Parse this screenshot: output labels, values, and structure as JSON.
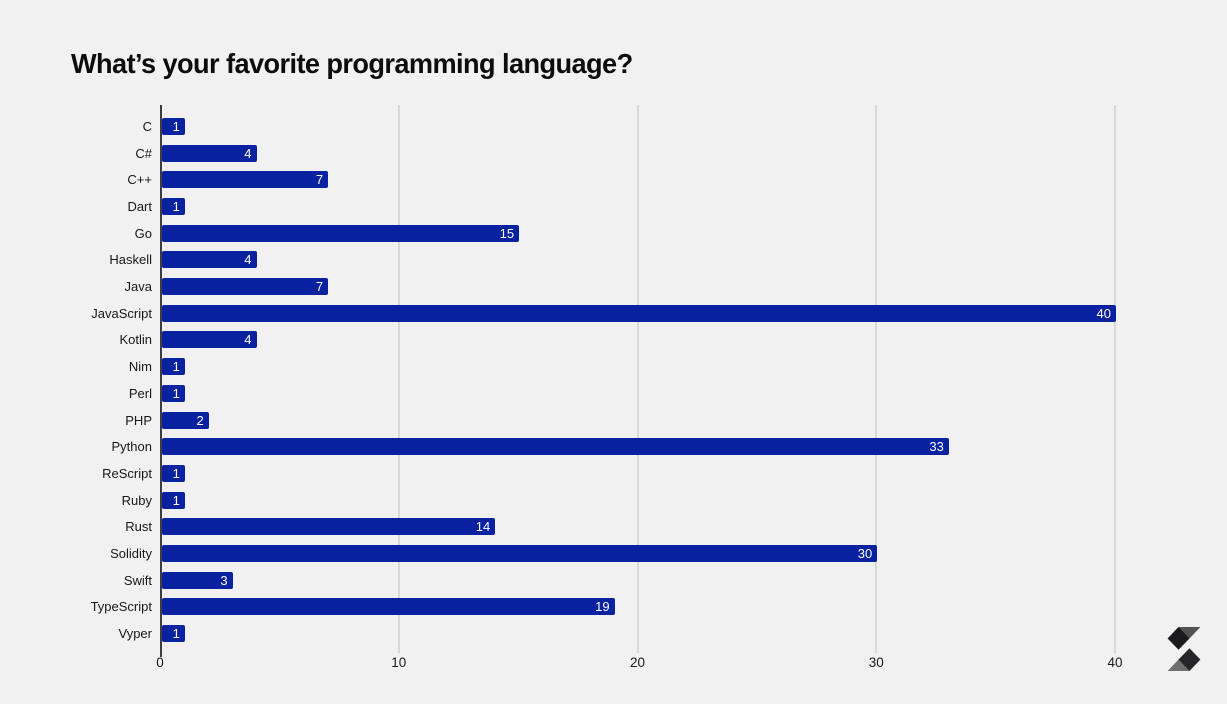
{
  "title": "What’s your favorite programming language?",
  "logo": {
    "icon": "solidity-logo-icon"
  },
  "colors": {
    "background": "#f0f1f0",
    "bar": "#0a21a0",
    "value_label": "#ffffff",
    "gridline": "#d8d8d8",
    "axis_line": "#3d3d3d"
  },
  "chart_data": {
    "type": "bar",
    "orientation": "horizontal",
    "title": "What’s your favorite programming language?",
    "categories": [
      "C",
      "C#",
      "C++",
      "Dart",
      "Go",
      "Haskell",
      "Java",
      "JavaScript",
      "Kotlin",
      "Nim",
      "Perl",
      "PHP",
      "Python",
      "ReScript",
      "Ruby",
      "Rust",
      "Solidity",
      "Swift",
      "TypeScript",
      "Vyper"
    ],
    "values": [
      1,
      4,
      7,
      1,
      15,
      4,
      7,
      40,
      4,
      1,
      1,
      2,
      33,
      1,
      1,
      14,
      30,
      3,
      19,
      1
    ],
    "xlabel": "",
    "ylabel": "",
    "xlim": [
      0,
      40
    ],
    "xticks": [
      0,
      10,
      20,
      30,
      40
    ],
    "grid": true,
    "legend": false,
    "value_labels": "inside-end"
  }
}
